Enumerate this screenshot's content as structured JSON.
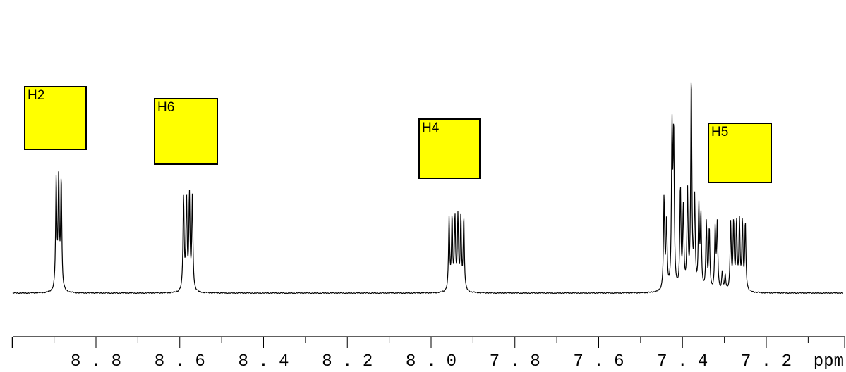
{
  "chart_data": {
    "type": "line",
    "title": "",
    "xlabel": "ppm",
    "ylabel": "",
    "x_reversed": true,
    "xlim": [
      9.0,
      7.0
    ],
    "x_ticks": [
      8.8,
      8.6,
      8.4,
      8.2,
      8.0,
      7.8,
      7.6,
      7.4,
      7.2
    ],
    "x_tick_labels": [
      "8.8",
      "8.6",
      "8.4",
      "8.2",
      "8.0",
      "7.8",
      "7.6",
      "7.4",
      "7.2"
    ],
    "unit_label": "ppm",
    "grid": false,
    "y_axis_shown": false,
    "line_color": "#000000",
    "label_color": "#ffff00",
    "peaks": [
      {
        "label": "H2",
        "shift": 8.89,
        "lines": [
          8.895,
          8.889,
          8.883
        ],
        "height": 0.52
      },
      {
        "label": "H6",
        "shift": 8.58,
        "lines": [
          8.591,
          8.584,
          8.577,
          8.57
        ],
        "height": 0.44
      },
      {
        "label": "H4",
        "shift": 7.94,
        "lines": [
          7.957,
          7.95,
          7.943,
          7.936,
          7.929,
          7.922
        ],
        "height": 0.34
      },
      {
        "label": "H5",
        "shift": 7.28,
        "lines": [
          7.285,
          7.278,
          7.271,
          7.264,
          7.257,
          7.25
        ],
        "height": 0.32
      }
    ],
    "multiplet_7_4": {
      "range": [
        7.45,
        7.31
      ],
      "max_height": 1.0
    }
  }
}
